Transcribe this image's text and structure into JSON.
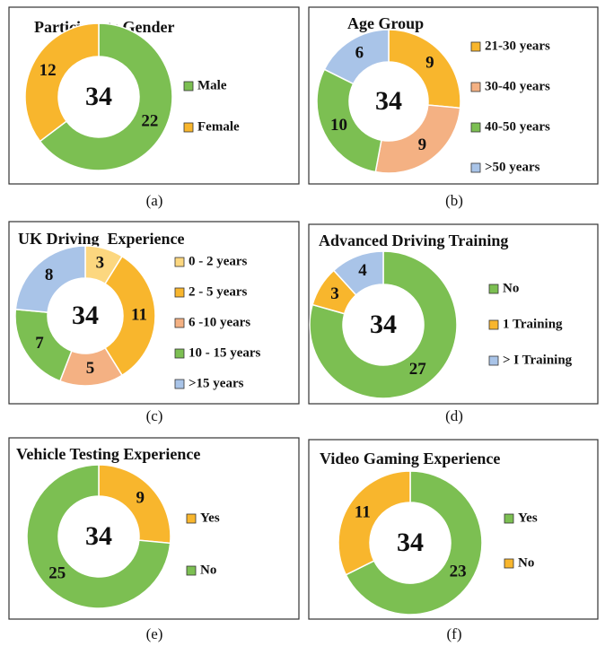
{
  "chart_data": [
    {
      "type": "donut",
      "title": "Participants Gender",
      "caption": "(a)",
      "center_label": 34,
      "categories": [
        "Male",
        "Female"
      ],
      "values": [
        22,
        12
      ],
      "colors": [
        "#7cbf52",
        "#f8b62d"
      ]
    },
    {
      "type": "donut",
      "title": "Age Group",
      "caption": "(b)",
      "center_label": 34,
      "categories": [
        "21-30 years",
        "30-40 years",
        "40-50 years",
        ">50 years"
      ],
      "values": [
        9,
        9,
        10,
        6
      ],
      "colors": [
        "#f8b62d",
        "#f4b183",
        "#7cbf52",
        "#a9c4e8"
      ]
    },
    {
      "type": "donut",
      "title": "UK Driving  Experience",
      "caption": "(c)",
      "center_label": 34,
      "categories": [
        "0 - 2 years",
        "2 - 5 years",
        "6 -10 years",
        "10 - 15 years",
        ">15 years"
      ],
      "values": [
        3,
        11,
        5,
        7,
        8
      ],
      "colors": [
        "#fcd77f",
        "#f8b62d",
        "#f4b183",
        "#7cbf52",
        "#a9c4e8"
      ]
    },
    {
      "type": "donut",
      "title": "Advanced Driving Training",
      "caption": "(d)",
      "center_label": 34,
      "categories": [
        "No",
        "1 Training",
        "> I Training"
      ],
      "values": [
        27,
        3,
        4
      ],
      "colors": [
        "#7cbf52",
        "#f8b62d",
        "#a9c4e8"
      ]
    },
    {
      "type": "donut",
      "title": "Vehicle Testing Experience",
      "caption": "(e)",
      "center_label": 34,
      "categories": [
        "Yes",
        "No"
      ],
      "values": [
        9,
        25
      ],
      "colors": [
        "#f8b62d",
        "#7cbf52"
      ]
    },
    {
      "type": "donut",
      "title": "Video Gaming Experience",
      "caption": "(f)",
      "center_label": 34,
      "categories": [
        "Yes",
        "No"
      ],
      "values": [
        23,
        11
      ],
      "colors": [
        "#7cbf52",
        "#f8b62d"
      ]
    }
  ]
}
